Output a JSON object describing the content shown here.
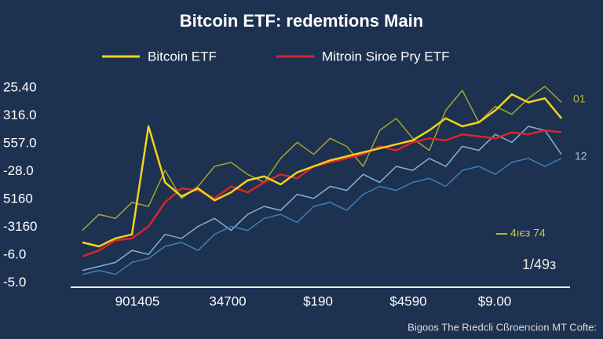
{
  "chart_data": {
    "type": "line",
    "title": "Bitcoin ETF: redemtions Main",
    "y_axis_labels": [
      "25.40",
      "316.0",
      "557.0",
      "-28.0",
      "5160",
      "-3160",
      "-6.0",
      "-5.0"
    ],
    "x_axis_labels": [
      "901405",
      "34700",
      "$190",
      "$4590",
      "$9.00"
    ],
    "ylim": [
      0,
      100
    ],
    "series": [
      {
        "name": "Bitcoin ETF",
        "color": "#f2d31b",
        "values": [
          22,
          20,
          24,
          26,
          80,
          52,
          45,
          49,
          43,
          47,
          53,
          55,
          51,
          57,
          60,
          63,
          65,
          67,
          69,
          71,
          73,
          78,
          84,
          80,
          82,
          88,
          96,
          92,
          94,
          84
        ]
      },
      {
        "name": "Mitroin Siroe Pry ETF",
        "color": "#d8252c",
        "values": [
          15,
          18,
          23,
          24,
          30,
          42,
          49,
          48,
          44,
          50,
          47,
          52,
          56,
          54,
          60,
          62,
          64,
          66,
          70,
          68,
          72,
          74,
          73,
          76,
          75,
          74,
          77,
          76,
          78,
          77
        ]
      },
      {
        "color": "#a3a62c",
        "values": [
          28,
          36,
          34,
          42,
          40,
          58,
          44,
          50,
          60,
          62,
          56,
          52,
          64,
          72,
          66,
          74,
          70,
          60,
          78,
          84,
          74,
          68,
          88,
          98,
          82,
          90,
          86,
          94,
          100,
          92
        ]
      },
      {
        "color": "#7fb4d8",
        "values": [
          8,
          10,
          12,
          18,
          16,
          26,
          24,
          30,
          34,
          28,
          36,
          40,
          38,
          46,
          44,
          50,
          48,
          56,
          52,
          60,
          58,
          64,
          60,
          70,
          68,
          76,
          72,
          80,
          78,
          66
        ]
      },
      {
        "color": "#3f7fb8",
        "values": [
          6,
          8,
          6,
          12,
          14,
          20,
          22,
          18,
          26,
          30,
          28,
          34,
          36,
          32,
          40,
          42,
          38,
          46,
          50,
          48,
          52,
          54,
          50,
          58,
          60,
          56,
          62,
          64,
          60,
          64
        ]
      }
    ],
    "annotations": [
      "01",
      "12",
      "4ıєз 74",
      "1/49з"
    ],
    "footer": "Bigoos The Rıedcli Cßroerıcion MT Cofte:"
  }
}
